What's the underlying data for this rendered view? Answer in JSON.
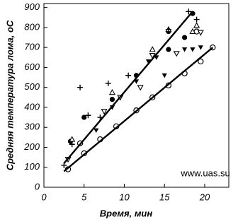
{
  "chart_data": {
    "type": "scatter",
    "x_label": "Время, мин",
    "y_label": "Средняя температура лома, оС",
    "annotation": "www.uas.su",
    "xlim": [
      0,
      23
    ],
    "ylim": [
      0,
      920
    ],
    "xticks": [
      0,
      5,
      10,
      15,
      20
    ],
    "yticks": [
      0,
      100,
      200,
      300,
      400,
      500,
      600,
      700,
      800,
      900
    ],
    "series": [
      {
        "marker": "circle-filled",
        "color": "#000000",
        "x": [
          3.3,
          5,
          8.5,
          11.5,
          15.5,
          17.5,
          18.5,
          15.5
        ],
        "values": [
          230,
          350,
          440,
          560,
          780,
          750,
          870,
          690
        ]
      },
      {
        "marker": "circle-open",
        "color": "#000000",
        "x": [
          3,
          5,
          7,
          9,
          11.5,
          13.5,
          15.5,
          17.5,
          19.5,
          21,
          19,
          4.5
        ],
        "values": [
          90,
          170,
          240,
          305,
          385,
          450,
          510,
          570,
          630,
          700,
          780,
          220
        ]
      },
      {
        "marker": "triangle-down-filled",
        "color": "#000000",
        "x": [
          6.5,
          8.5,
          11.5,
          13,
          15,
          17.5,
          18.5,
          19.5,
          14
        ],
        "values": [
          285,
          400,
          530,
          630,
          560,
          690,
          690,
          700,
          650
        ]
      },
      {
        "marker": "triangle-down-open",
        "color": "#000000",
        "x": [
          3,
          7.5,
          9.5,
          12,
          13.5,
          16.5,
          19.5
        ],
        "values": [
          140,
          380,
          450,
          500,
          660,
          670,
          775
        ]
      },
      {
        "marker": "triangle-up-open",
        "color": "#000000",
        "x": [
          3.5,
          8.5,
          13.5,
          15.5,
          18.5,
          19
        ],
        "values": [
          240,
          475,
          690,
          790,
          780,
          810
        ]
      },
      {
        "marker": "plus",
        "color": "#000000",
        "x": [
          2.5,
          3.5,
          4.5,
          5.5,
          8,
          10.5,
          15.5,
          18,
          19,
          7
        ],
        "values": [
          110,
          215,
          500,
          360,
          520,
          560,
          790,
          880,
          840,
          350
        ]
      },
      {
        "marker": "line",
        "color": "#000000",
        "x": [
          2.5,
          18.5
        ],
        "values": [
          120,
          880
        ]
      },
      {
        "marker": "line",
        "color": "#000000",
        "x": [
          2.5,
          21
        ],
        "values": [
          80,
          700
        ]
      }
    ]
  }
}
